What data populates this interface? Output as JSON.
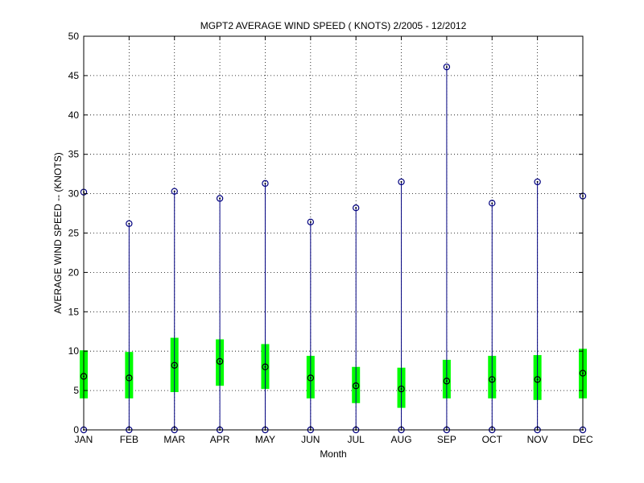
{
  "chart_data": {
    "type": "boxplot",
    "title": "MGPT2  AVERAGE WIND SPEED ( KNOTS) 2/2005 - 12/2012",
    "xlabel": "Month",
    "ylabel": "AVERAGE WIND SPEED -- (KNOTS)",
    "ylim": [
      0,
      50
    ],
    "yticks": [
      0,
      5,
      10,
      15,
      20,
      25,
      30,
      35,
      40,
      45,
      50
    ],
    "grid": true,
    "categories": [
      "JAN",
      "FEB",
      "MAR",
      "APR",
      "MAY",
      "JUN",
      "JUL",
      "AUG",
      "SEP",
      "OCT",
      "NOV",
      "DEC"
    ],
    "min": [
      0,
      0,
      0,
      0,
      0,
      0,
      0,
      0,
      0,
      0,
      0,
      0
    ],
    "q1": [
      4.0,
      4.0,
      4.8,
      5.6,
      5.2,
      4.0,
      3.4,
      2.8,
      4.0,
      4.0,
      3.8,
      4.0
    ],
    "median": [
      6.8,
      6.6,
      8.2,
      8.7,
      8.0,
      6.6,
      5.6,
      5.2,
      6.2,
      6.4,
      6.4,
      7.2
    ],
    "q3": [
      10.1,
      9.9,
      11.7,
      11.5,
      10.9,
      9.4,
      8.0,
      7.9,
      8.9,
      9.4,
      9.5,
      10.3
    ],
    "max": [
      30.2,
      26.2,
      30.3,
      29.4,
      31.3,
      26.4,
      28.2,
      31.5,
      46.1,
      28.8,
      31.5,
      29.7
    ],
    "colors": {
      "whisker": "#00007f",
      "box": "#00ff00",
      "marker": "#000000",
      "grid": "#000000"
    }
  }
}
